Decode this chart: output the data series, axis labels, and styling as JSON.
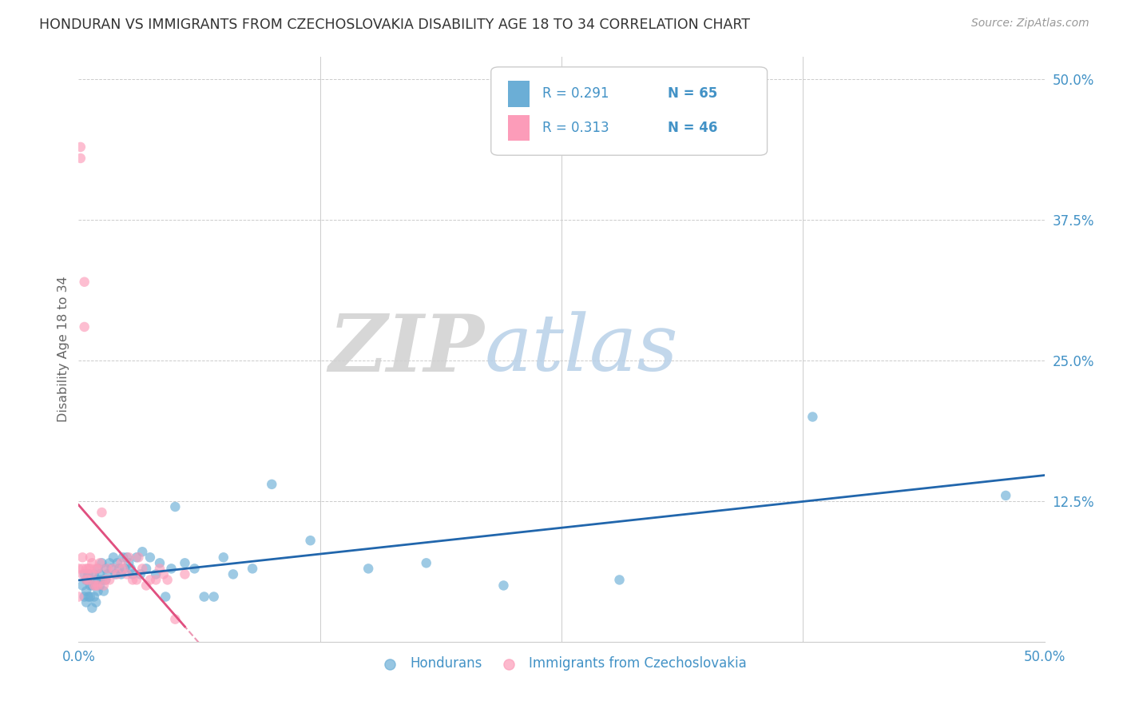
{
  "title": "HONDURAN VS IMMIGRANTS FROM CZECHOSLOVAKIA DISABILITY AGE 18 TO 34 CORRELATION CHART",
  "source": "Source: ZipAtlas.com",
  "ylabel": "Disability Age 18 to 34",
  "xlim": [
    0.0,
    0.5
  ],
  "ylim": [
    0.0,
    0.52
  ],
  "color_blue": "#6baed6",
  "color_pink": "#fc9cb9",
  "color_blue_line": "#2166ac",
  "color_pink_line": "#e05080",
  "color_blue_text": "#4292c6",
  "color_pink_text": "#f768a1",
  "watermark_zip": "ZIP",
  "watermark_atlas": "atlas",
  "background_color": "#ffffff",
  "grid_color": "#cccccc",
  "tick_color": "#4292c6",
  "legend_r1": "R = 0.291",
  "legend_n1": "N = 65",
  "legend_r2": "R = 0.313",
  "legend_n2": "N = 46",
  "honduran_x": [
    0.002,
    0.003,
    0.003,
    0.004,
    0.004,
    0.004,
    0.005,
    0.005,
    0.006,
    0.006,
    0.007,
    0.007,
    0.008,
    0.008,
    0.009,
    0.009,
    0.01,
    0.01,
    0.01,
    0.011,
    0.011,
    0.012,
    0.012,
    0.013,
    0.014,
    0.014,
    0.015,
    0.016,
    0.017,
    0.018,
    0.019,
    0.02,
    0.021,
    0.022,
    0.023,
    0.024,
    0.025,
    0.026,
    0.027,
    0.028,
    0.03,
    0.032,
    0.033,
    0.035,
    0.037,
    0.04,
    0.042,
    0.045,
    0.048,
    0.05,
    0.055,
    0.06,
    0.065,
    0.07,
    0.075,
    0.08,
    0.09,
    0.1,
    0.12,
    0.15,
    0.18,
    0.22,
    0.28,
    0.38,
    0.48
  ],
  "honduran_y": [
    0.05,
    0.04,
    0.06,
    0.035,
    0.045,
    0.055,
    0.04,
    0.06,
    0.04,
    0.05,
    0.03,
    0.05,
    0.04,
    0.06,
    0.035,
    0.055,
    0.045,
    0.055,
    0.065,
    0.05,
    0.06,
    0.055,
    0.07,
    0.045,
    0.065,
    0.055,
    0.06,
    0.07,
    0.065,
    0.075,
    0.06,
    0.07,
    0.065,
    0.06,
    0.075,
    0.065,
    0.075,
    0.07,
    0.065,
    0.06,
    0.075,
    0.06,
    0.08,
    0.065,
    0.075,
    0.06,
    0.07,
    0.04,
    0.065,
    0.12,
    0.07,
    0.065,
    0.04,
    0.04,
    0.075,
    0.06,
    0.065,
    0.14,
    0.09,
    0.065,
    0.07,
    0.05,
    0.055,
    0.2,
    0.13
  ],
  "czech_x": [
    0.0,
    0.0,
    0.001,
    0.001,
    0.002,
    0.002,
    0.002,
    0.003,
    0.003,
    0.004,
    0.004,
    0.005,
    0.005,
    0.006,
    0.006,
    0.007,
    0.007,
    0.008,
    0.009,
    0.009,
    0.01,
    0.01,
    0.011,
    0.012,
    0.013,
    0.014,
    0.015,
    0.016,
    0.018,
    0.02,
    0.022,
    0.023,
    0.025,
    0.026,
    0.028,
    0.03,
    0.031,
    0.033,
    0.035,
    0.037,
    0.04,
    0.042,
    0.044,
    0.046,
    0.05,
    0.055
  ],
  "czech_y": [
    0.04,
    0.065,
    0.43,
    0.44,
    0.065,
    0.075,
    0.06,
    0.32,
    0.28,
    0.065,
    0.055,
    0.065,
    0.055,
    0.075,
    0.065,
    0.07,
    0.06,
    0.05,
    0.065,
    0.05,
    0.065,
    0.05,
    0.07,
    0.115,
    0.05,
    0.055,
    0.065,
    0.055,
    0.065,
    0.06,
    0.07,
    0.065,
    0.06,
    0.075,
    0.055,
    0.055,
    0.075,
    0.065,
    0.05,
    0.055,
    0.055,
    0.065,
    0.06,
    0.055,
    0.02,
    0.06
  ],
  "marker_size": 9
}
